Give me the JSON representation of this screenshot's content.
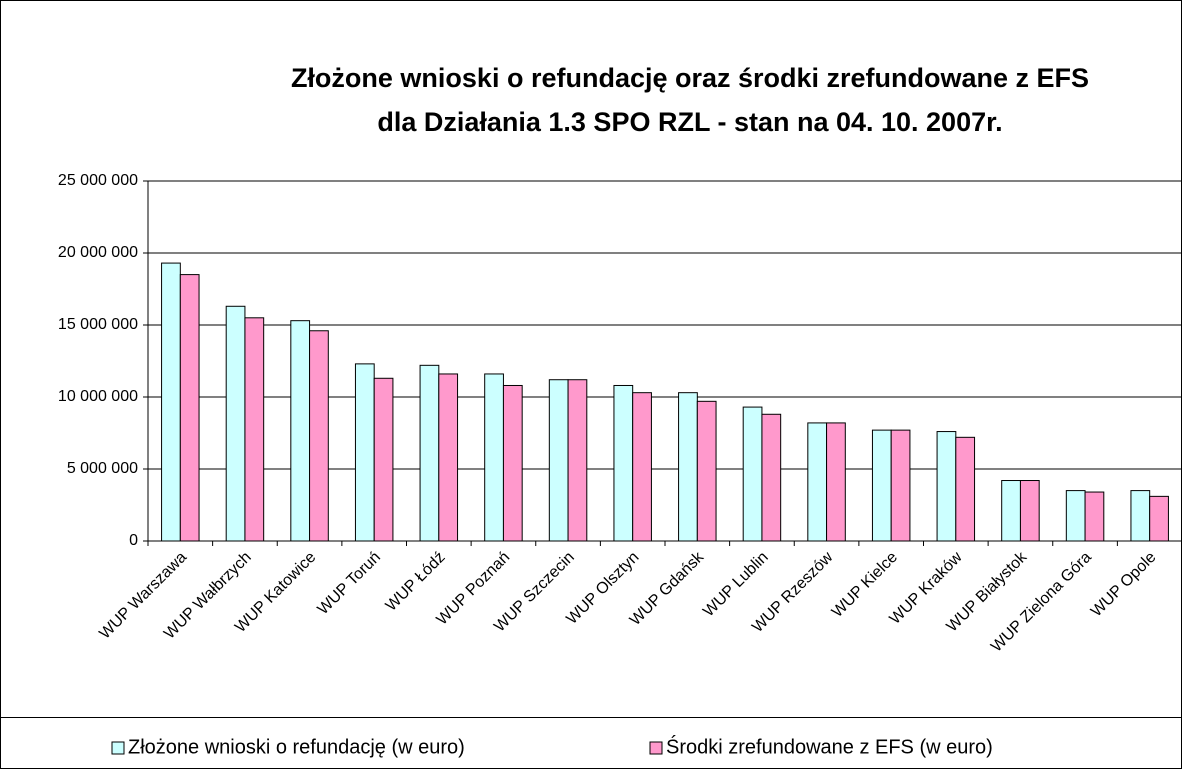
{
  "chart_data": {
    "type": "bar",
    "title": [
      "Złożone wnioski o refundację oraz środki zrefundowane z EFS",
      "dla Działania 1.3 SPO RZL - stan na 04. 10. 2007r."
    ],
    "categories": [
      "WUP Warszawa",
      "WUP Wałbrzych",
      "WUP Katowice",
      "WUP Toruń",
      "WUP Łódź",
      "WUP Poznań",
      "WUP Szczecin",
      "WUP Olsztyn",
      "WUP Gdańsk",
      "WUP Lublin",
      "WUP Rzeszów",
      "WUP Kielce",
      "WUP Kraków",
      "WUP Białystok",
      "WUP Zielona Góra",
      "WUP Opole"
    ],
    "series": [
      {
        "name": "Złożone wnioski o refundację (w euro)",
        "color": "#ccffff",
        "values": [
          19300000,
          16300000,
          15300000,
          12300000,
          12200000,
          11600000,
          11200000,
          10800000,
          10300000,
          9300000,
          8200000,
          7700000,
          7600000,
          4200000,
          3500000,
          3500000
        ]
      },
      {
        "name": "Środki zrefundowane z EFS (w euro)",
        "color": "#ff99cc",
        "values": [
          18500000,
          15500000,
          14600000,
          11300000,
          11600000,
          10800000,
          11200000,
          10300000,
          9700000,
          8800000,
          8200000,
          7700000,
          7200000,
          4200000,
          3400000,
          3100000
        ]
      }
    ],
    "ylim": [
      0,
      25000000
    ],
    "yticks": [
      0,
      {
        "value": 5000000,
        "label": "5 000 000"
      },
      {
        "value": 10000000,
        "label": "10 000 000"
      },
      {
        "value": 15000000,
        "label": "15 000 000"
      },
      {
        "value": 20000000,
        "label": "20 000 000"
      },
      {
        "value": 25000000,
        "label": "25 000 000"
      }
    ],
    "grid": true,
    "legend": "bottom"
  }
}
